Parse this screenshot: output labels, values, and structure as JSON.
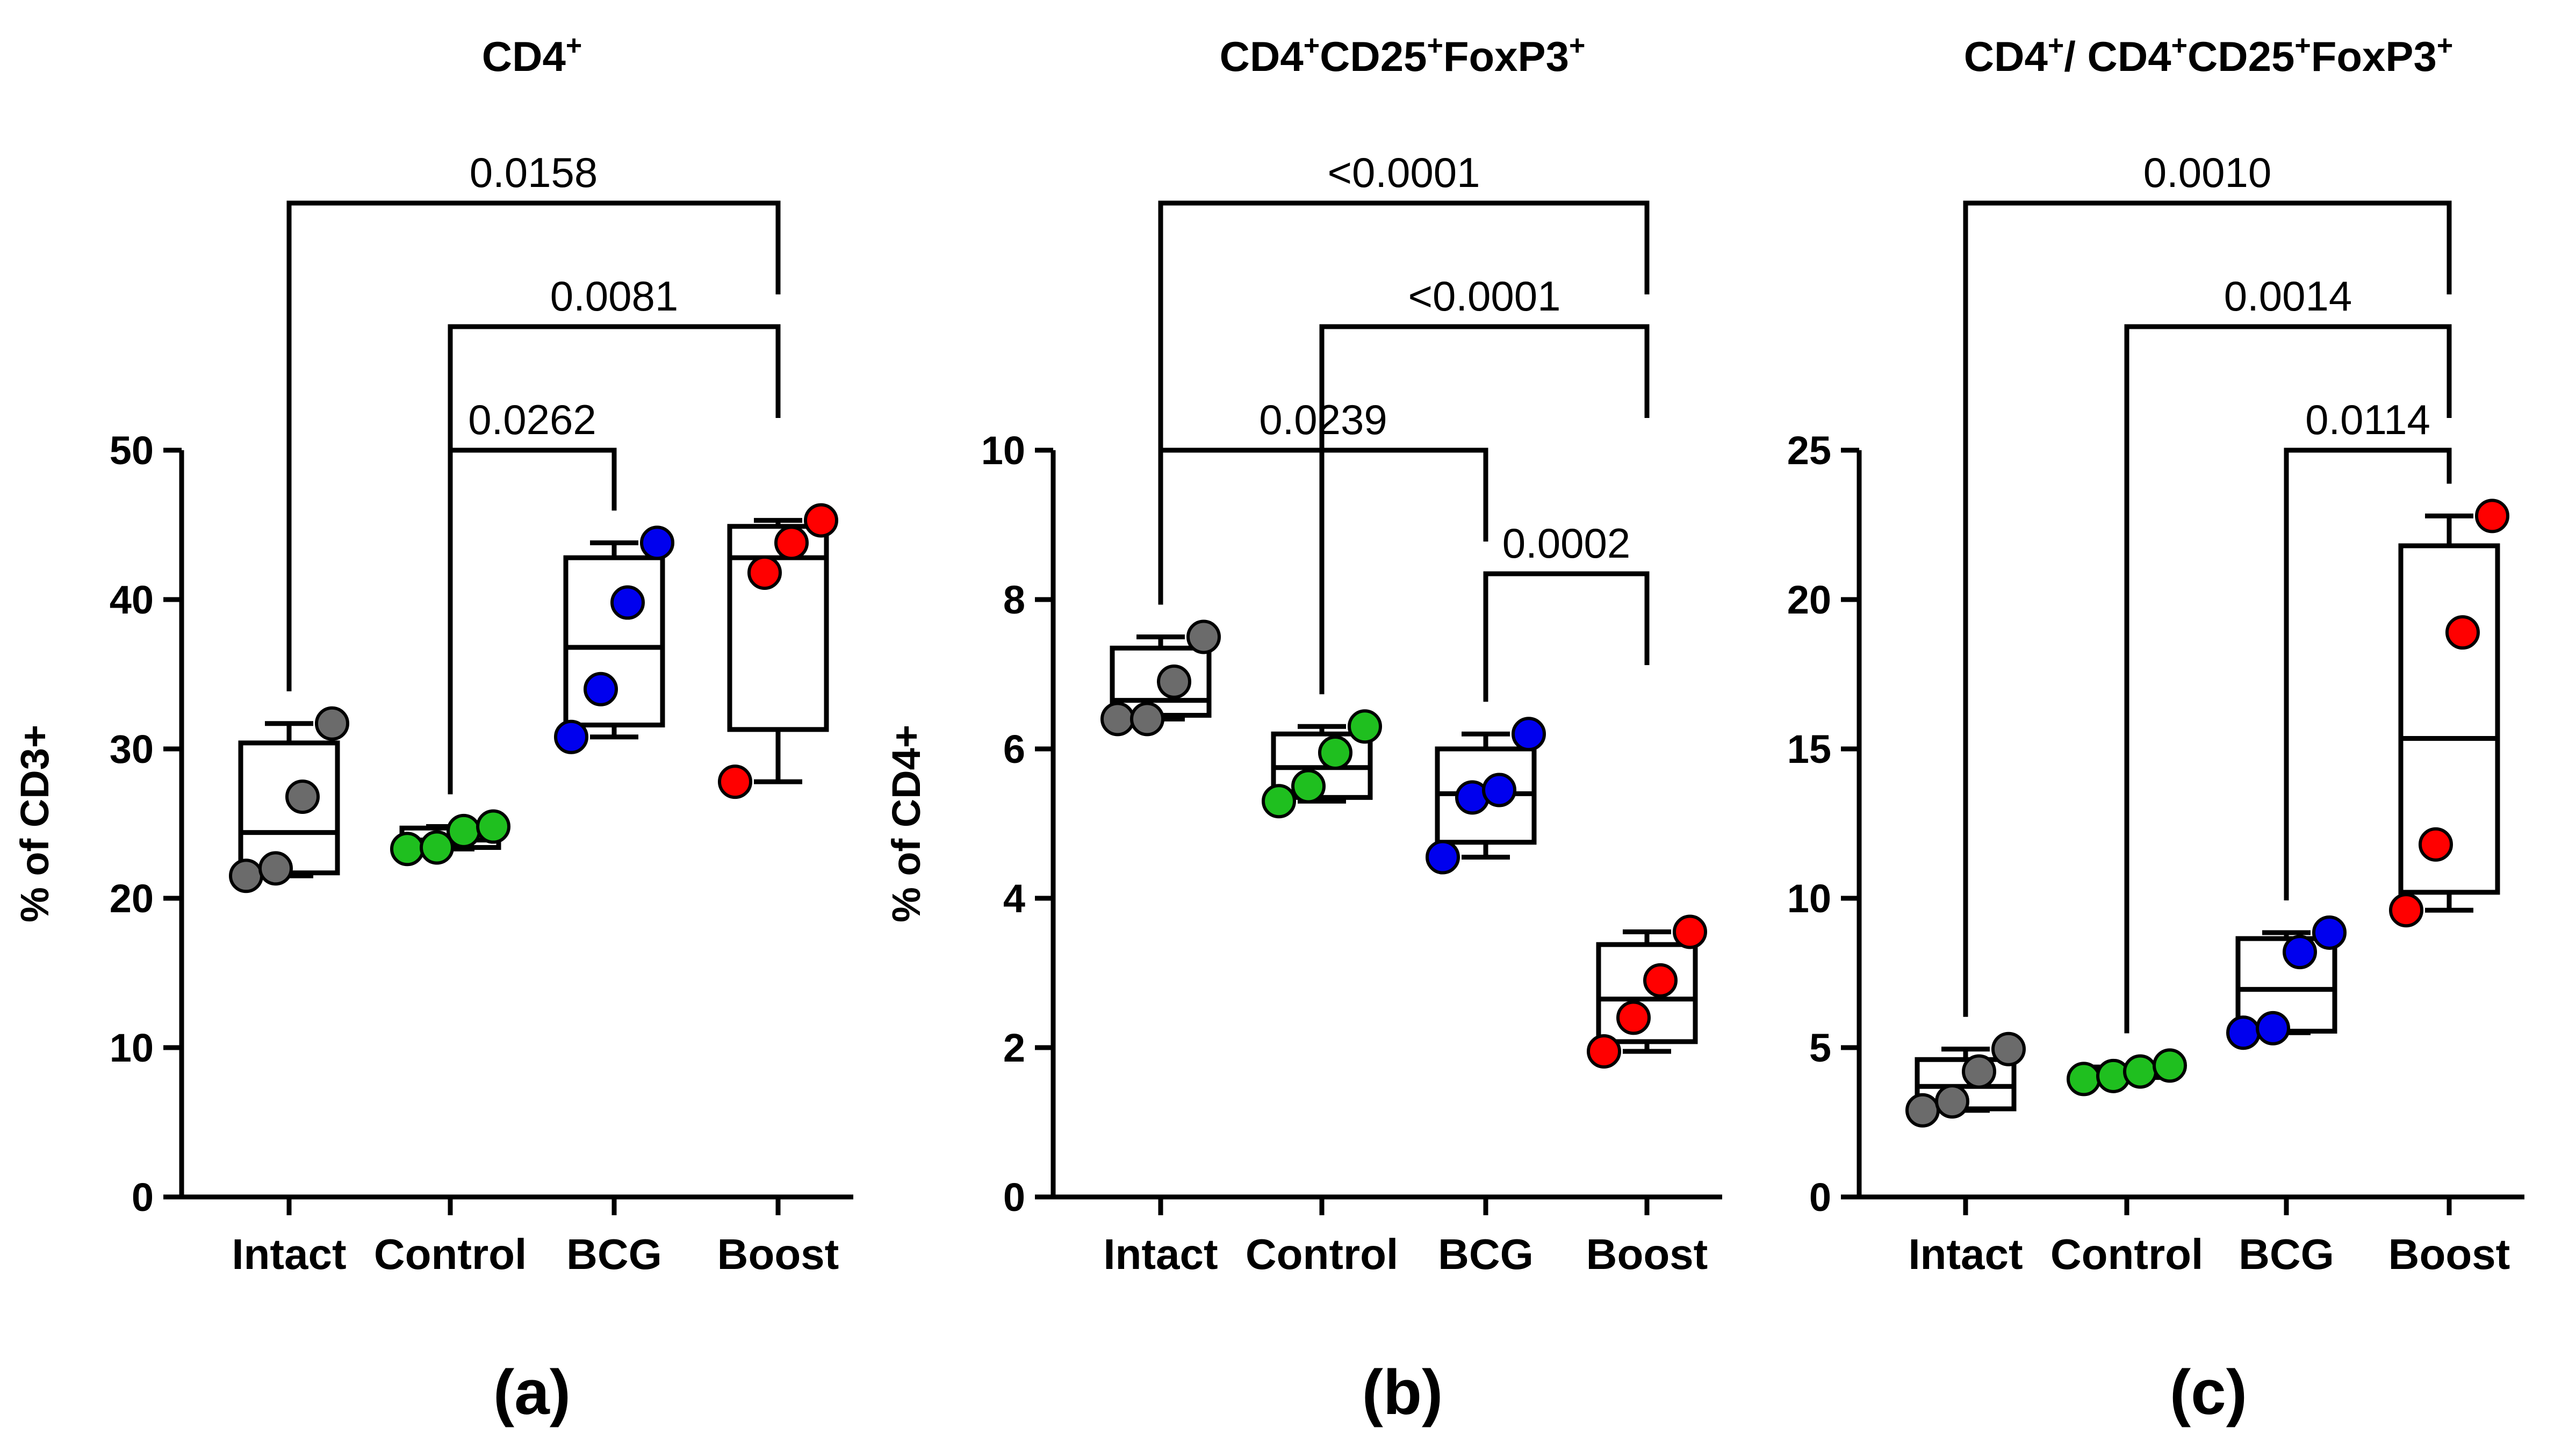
{
  "chart_data": [
    {
      "type": "box",
      "panel_label": "(a)",
      "title": {
        "parts": [
          {
            "t": "CD4",
            "s": false
          },
          {
            "t": "+",
            "s": true
          }
        ]
      },
      "ylabel": "% of CD3+",
      "ylim": [
        0,
        50
      ],
      "yticks": [
        0,
        10,
        20,
        30,
        40,
        50
      ],
      "categories": [
        "Intact",
        "Control",
        "BCG",
        "Boost"
      ],
      "colors": [
        "#6b6b6b",
        "#1fbf1f",
        "#0000ee",
        "#ff0000"
      ],
      "groups": [
        {
          "points": [
            21.5,
            22.0,
            26.8,
            31.7
          ],
          "min": 21.5,
          "q1": 21.7,
          "median": 24.4,
          "q3": 30.4,
          "max": 31.7
        },
        {
          "points": [
            23.3,
            23.4,
            24.5,
            24.8
          ],
          "min": 23.3,
          "q1": 23.4,
          "median": 23.9,
          "q3": 24.7,
          "max": 24.8
        },
        {
          "points": [
            30.8,
            34.0,
            39.8,
            43.8
          ],
          "min": 30.8,
          "q1": 31.6,
          "median": 36.8,
          "q3": 42.8,
          "max": 43.8
        },
        {
          "points": [
            27.8,
            41.8,
            43.8,
            45.3
          ],
          "min": 27.8,
          "q1": 31.3,
          "median": 42.8,
          "q3": 44.9,
          "max": 45.3
        }
      ],
      "comparisons": [
        {
          "a": 0,
          "b": 3,
          "p": "0.0158"
        },
        {
          "a": 1,
          "b": 3,
          "p": "0.0081"
        },
        {
          "a": 1,
          "b": 2,
          "p": "0.0262"
        }
      ]
    },
    {
      "type": "box",
      "panel_label": "(b)",
      "title": {
        "parts": [
          {
            "t": "CD4",
            "s": false
          },
          {
            "t": "+",
            "s": true
          },
          {
            "t": "CD25",
            "s": false
          },
          {
            "t": "+",
            "s": true
          },
          {
            "t": "FoxP3",
            "s": false
          },
          {
            "t": "+",
            "s": true
          }
        ]
      },
      "ylabel": "% of CD4+",
      "ylim": [
        0,
        10
      ],
      "yticks": [
        0,
        2,
        4,
        6,
        8,
        10
      ],
      "categories": [
        "Intact",
        "Control",
        "BCG",
        "Boost"
      ],
      "colors": [
        "#6b6b6b",
        "#1fbf1f",
        "#0000ee",
        "#ff0000"
      ],
      "groups": [
        {
          "points": [
            6.4,
            6.4,
            6.9,
            7.5
          ],
          "min": 6.4,
          "q1": 6.45,
          "median": 6.65,
          "q3": 7.35,
          "max": 7.5
        },
        {
          "points": [
            5.3,
            5.5,
            5.95,
            6.3
          ],
          "min": 5.3,
          "q1": 5.35,
          "median": 5.75,
          "q3": 6.2,
          "max": 6.3
        },
        {
          "points": [
            4.55,
            5.35,
            5.45,
            6.2
          ],
          "min": 4.55,
          "q1": 4.75,
          "median": 5.4,
          "q3": 6.0,
          "max": 6.2
        },
        {
          "points": [
            1.95,
            2.4,
            2.9,
            3.55
          ],
          "min": 1.95,
          "q1": 2.08,
          "median": 2.65,
          "q3": 3.38,
          "max": 3.55
        }
      ],
      "comparisons": [
        {
          "a": 0,
          "b": 3,
          "p": "<0.0001"
        },
        {
          "a": 1,
          "b": 3,
          "p": "<0.0001"
        },
        {
          "a": 0,
          "b": 2,
          "p": "0.0239"
        },
        {
          "a": 2,
          "b": 3,
          "p": "0.0002"
        }
      ]
    },
    {
      "type": "box",
      "panel_label": "(c)",
      "title": {
        "parts": [
          {
            "t": "CD4",
            "s": false
          },
          {
            "t": "+",
            "s": true
          },
          {
            "t": "/ CD4",
            "s": false
          },
          {
            "t": "+",
            "s": true
          },
          {
            "t": "CD25",
            "s": false
          },
          {
            "t": "+",
            "s": true
          },
          {
            "t": "FoxP3",
            "s": false
          },
          {
            "t": "+",
            "s": true
          }
        ]
      },
      "ylabel": "",
      "ylim": [
        0,
        25
      ],
      "yticks": [
        0,
        5,
        10,
        15,
        20,
        25
      ],
      "categories": [
        "Intact",
        "Control",
        "BCG",
        "Boost"
      ],
      "colors": [
        "#6b6b6b",
        "#1fbf1f",
        "#0000ee",
        "#ff0000"
      ],
      "groups": [
        {
          "points": [
            2.9,
            3.2,
            4.2,
            4.95
          ],
          "min": 2.9,
          "q1": 2.95,
          "median": 3.7,
          "q3": 4.6,
          "max": 4.95
        },
        {
          "points": [
            3.95,
            4.05,
            4.2,
            4.4
          ],
          "min": 3.95,
          "q1": 4.0,
          "median": 4.15,
          "q3": 4.35,
          "max": 4.4
        },
        {
          "points": [
            5.5,
            5.65,
            8.2,
            8.85
          ],
          "min": 5.5,
          "q1": 5.55,
          "median": 6.95,
          "q3": 8.65,
          "max": 8.85
        },
        {
          "points": [
            9.6,
            11.8,
            18.9,
            22.8
          ],
          "min": 9.6,
          "q1": 10.2,
          "median": 15.35,
          "q3": 21.8,
          "max": 22.8
        }
      ],
      "comparisons": [
        {
          "a": 0,
          "b": 3,
          "p": "0.0010"
        },
        {
          "a": 1,
          "b": 3,
          "p": "0.0014"
        },
        {
          "a": 2,
          "b": 3,
          "p": "0.0114"
        }
      ]
    }
  ]
}
